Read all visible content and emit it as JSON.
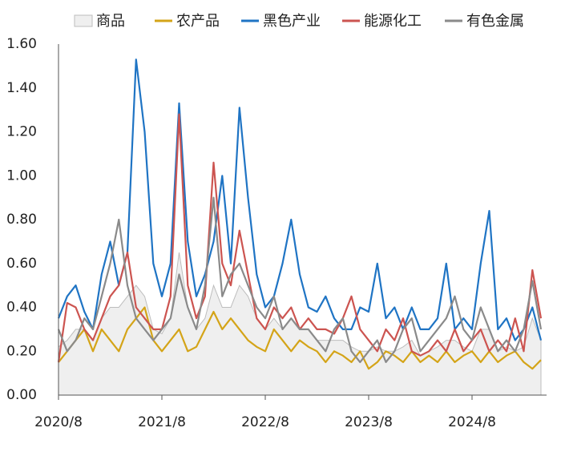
{
  "chart_data": {
    "type": "line",
    "categories": [
      "2020/8",
      null,
      null,
      null,
      null,
      null,
      null,
      null,
      null,
      null,
      null,
      null,
      "2021/8",
      null,
      null,
      null,
      null,
      null,
      null,
      null,
      null,
      null,
      null,
      null,
      "2022/8",
      null,
      null,
      null,
      null,
      null,
      null,
      null,
      null,
      null,
      null,
      null,
      "2023/8",
      null,
      null,
      null,
      null,
      null,
      null,
      null,
      null,
      null,
      null,
      null,
      "2024/8",
      null,
      null,
      null,
      null,
      null,
      null,
      null,
      null
    ],
    "ylim": [
      0,
      1.6
    ],
    "yticks": [
      {
        "value": 0,
        "label": "0.00"
      },
      {
        "value": 0.2,
        "label": "0.20"
      },
      {
        "value": 0.4,
        "label": "0.40"
      },
      {
        "value": 0.6,
        "label": "0.60"
      },
      {
        "value": 0.8,
        "label": "0.80"
      },
      {
        "value": 1.0,
        "label": "1.00"
      },
      {
        "value": 1.2,
        "label": "1.20"
      },
      {
        "value": 1.4,
        "label": "1.40"
      },
      {
        "value": 1.6,
        "label": "1.60"
      }
    ],
    "grid": false,
    "legend": "top",
    "series": [
      {
        "name": "商品",
        "style": "area",
        "color": "#bdbdbd",
        "fill": "#efefef",
        "values": [
          0.22,
          0.25,
          0.3,
          0.3,
          0.25,
          0.35,
          0.4,
          0.4,
          0.45,
          0.5,
          0.45,
          0.3,
          0.28,
          0.35,
          0.65,
          0.4,
          0.3,
          0.35,
          0.5,
          0.4,
          0.4,
          0.5,
          0.45,
          0.35,
          0.3,
          0.35,
          0.3,
          0.35,
          0.3,
          0.3,
          0.25,
          0.25,
          0.25,
          0.25,
          0.22,
          0.2,
          0.2,
          0.22,
          0.2,
          0.2,
          0.22,
          0.25,
          0.18,
          0.2,
          0.22,
          0.25,
          0.25,
          0.22,
          0.2,
          0.3,
          0.3,
          0.2,
          0.22,
          0.2,
          0.22,
          0.35,
          0.25
        ]
      },
      {
        "name": "农产品",
        "style": "line",
        "color": "#d4a418",
        "values": [
          0.15,
          0.2,
          0.25,
          0.3,
          0.2,
          0.3,
          0.25,
          0.2,
          0.3,
          0.35,
          0.4,
          0.25,
          0.2,
          0.25,
          0.3,
          0.2,
          0.22,
          0.3,
          0.38,
          0.3,
          0.35,
          0.3,
          0.25,
          0.22,
          0.2,
          0.3,
          0.25,
          0.2,
          0.25,
          0.22,
          0.2,
          0.15,
          0.2,
          0.18,
          0.15,
          0.2,
          0.12,
          0.15,
          0.2,
          0.18,
          0.15,
          0.2,
          0.15,
          0.18,
          0.15,
          0.2,
          0.15,
          0.18,
          0.2,
          0.15,
          0.2,
          0.15,
          0.18,
          0.2,
          0.15,
          0.12,
          0.16
        ]
      },
      {
        "name": "黑色产业",
        "style": "line",
        "color": "#1f74c4",
        "values": [
          0.35,
          0.45,
          0.5,
          0.38,
          0.3,
          0.55,
          0.7,
          0.5,
          0.65,
          1.53,
          1.2,
          0.6,
          0.45,
          0.6,
          1.33,
          0.7,
          0.45,
          0.55,
          0.7,
          1.0,
          0.6,
          1.31,
          0.9,
          0.55,
          0.4,
          0.45,
          0.6,
          0.8,
          0.55,
          0.4,
          0.38,
          0.45,
          0.35,
          0.3,
          0.3,
          0.4,
          0.38,
          0.6,
          0.35,
          0.4,
          0.3,
          0.4,
          0.3,
          0.3,
          0.35,
          0.6,
          0.3,
          0.35,
          0.3,
          0.6,
          0.84,
          0.3,
          0.35,
          0.25,
          0.3,
          0.4,
          0.25
        ]
      },
      {
        "name": "能源化工",
        "style": "line",
        "color": "#cc5450",
        "values": [
          0.15,
          0.42,
          0.4,
          0.3,
          0.25,
          0.35,
          0.45,
          0.5,
          0.65,
          0.4,
          0.35,
          0.3,
          0.3,
          0.45,
          1.28,
          0.5,
          0.35,
          0.45,
          1.06,
          0.6,
          0.5,
          0.75,
          0.55,
          0.35,
          0.3,
          0.4,
          0.35,
          0.4,
          0.3,
          0.35,
          0.3,
          0.3,
          0.28,
          0.35,
          0.45,
          0.3,
          0.25,
          0.2,
          0.3,
          0.25,
          0.35,
          0.2,
          0.18,
          0.2,
          0.25,
          0.2,
          0.3,
          0.2,
          0.25,
          0.3,
          0.2,
          0.25,
          0.2,
          0.35,
          0.2,
          0.57,
          0.35
        ]
      },
      {
        "name": "有色金属",
        "style": "line",
        "color": "#8a8a8a",
        "values": [
          0.3,
          0.2,
          0.25,
          0.35,
          0.3,
          0.45,
          0.6,
          0.8,
          0.5,
          0.35,
          0.3,
          0.25,
          0.3,
          0.35,
          0.55,
          0.4,
          0.3,
          0.5,
          0.9,
          0.45,
          0.55,
          0.6,
          0.5,
          0.4,
          0.35,
          0.45,
          0.3,
          0.35,
          0.3,
          0.3,
          0.25,
          0.2,
          0.3,
          0.35,
          0.2,
          0.15,
          0.2,
          0.25,
          0.15,
          0.2,
          0.3,
          0.35,
          0.2,
          0.25,
          0.3,
          0.35,
          0.45,
          0.3,
          0.25,
          0.4,
          0.3,
          0.2,
          0.25,
          0.2,
          0.3,
          0.52,
          0.3
        ]
      }
    ]
  }
}
